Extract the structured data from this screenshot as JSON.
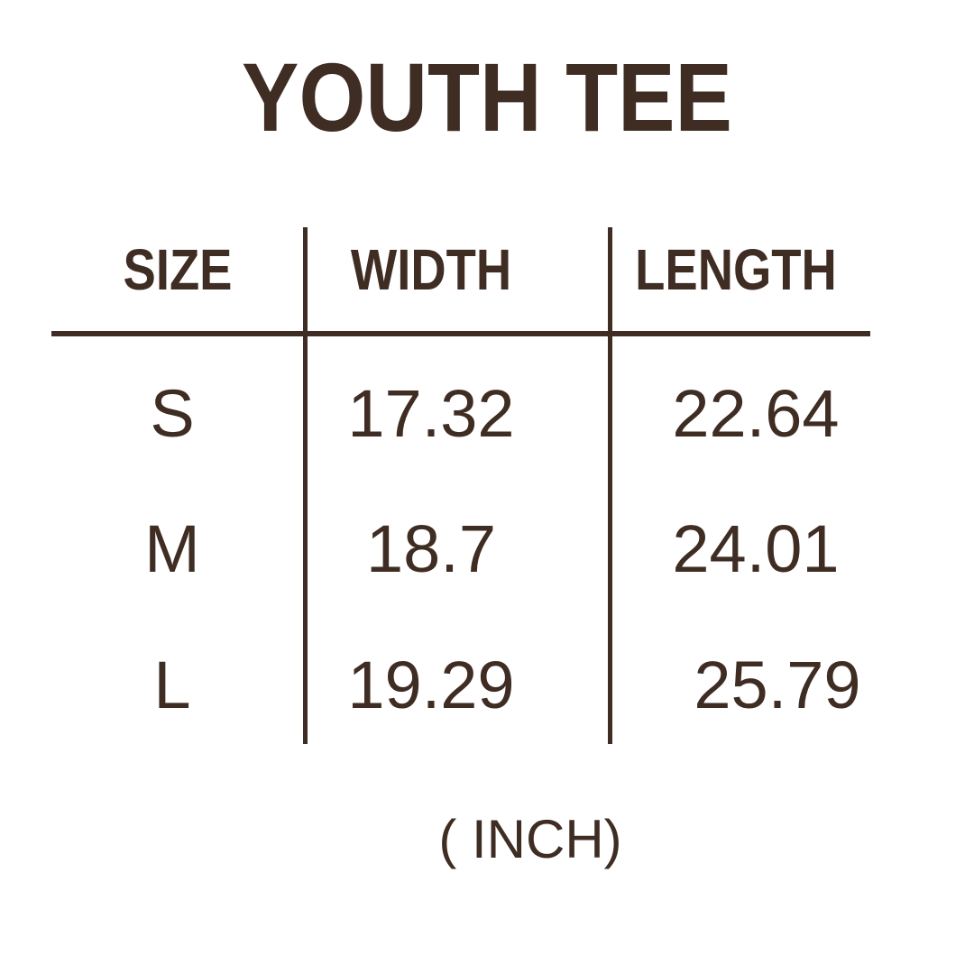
{
  "colors": {
    "background": "#FFFFFF",
    "text": "#3F2D23",
    "line": "#3F2D23"
  },
  "title": "YOUTH TEE",
  "table": {
    "headers": [
      "SIZE",
      "WIDTH",
      "LENGTH"
    ],
    "rows": [
      [
        "S",
        "17.32",
        "22.64"
      ],
      [
        "M",
        "18.7",
        "24.01"
      ],
      [
        "L",
        "19.29",
        "25.79"
      ]
    ]
  },
  "footer": {
    "unit_label": "( INCH)"
  },
  "chart_data": {
    "type": "table",
    "title": "YOUTH TEE",
    "columns": [
      "SIZE",
      "WIDTH",
      "LENGTH"
    ],
    "rows": [
      [
        "S",
        17.32,
        22.64
      ],
      [
        "M",
        18.7,
        24.01
      ],
      [
        "L",
        19.29,
        25.79
      ]
    ],
    "unit": "INCH"
  }
}
